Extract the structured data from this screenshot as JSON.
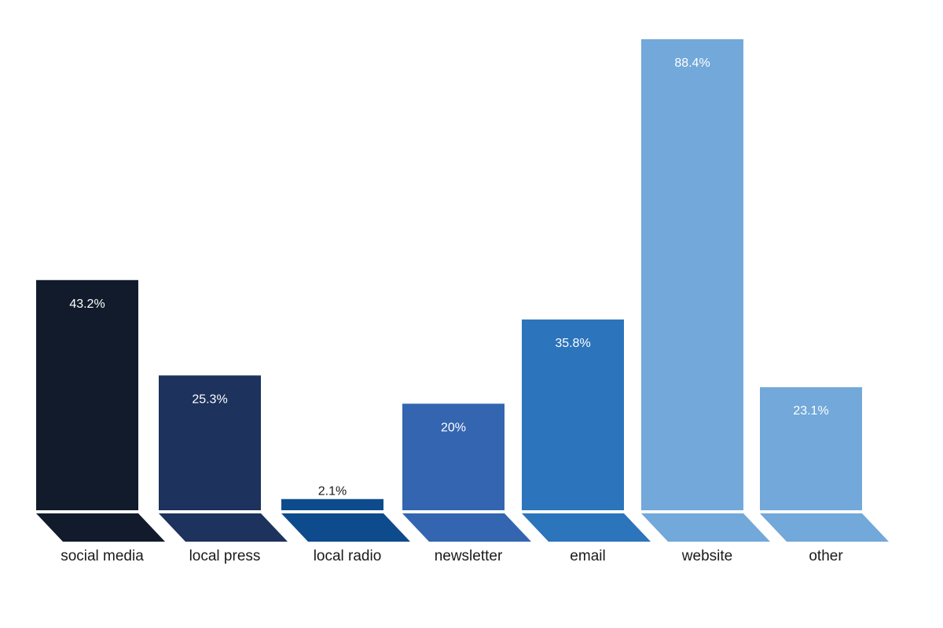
{
  "chart_data": {
    "type": "bar",
    "categories": [
      "social media",
      "local press",
      "local radio",
      "newsletter",
      "email",
      "website",
      "other"
    ],
    "values": [
      43.2,
      25.3,
      2.1,
      20,
      35.8,
      88.4,
      23.1
    ],
    "value_labels": [
      "43.2%",
      "25.3%",
      "2.1%",
      "20%",
      "35.8%",
      "88.4%",
      "23.1%"
    ],
    "colors": [
      "#111b2b",
      "#1d325c",
      "#0d4b8c",
      "#3465b0",
      "#2c74bb",
      "#72a8da",
      "#72a8da"
    ],
    "value_label_colors": [
      "#ffffff",
      "#ffffff",
      "#1a1a1a",
      "#ffffff",
      "#ffffff",
      "#ffffff",
      "#ffffff"
    ],
    "title": "",
    "xlabel": "",
    "ylabel": "",
    "ylim": [
      0,
      88.4
    ],
    "grid": false,
    "legend": "none"
  }
}
